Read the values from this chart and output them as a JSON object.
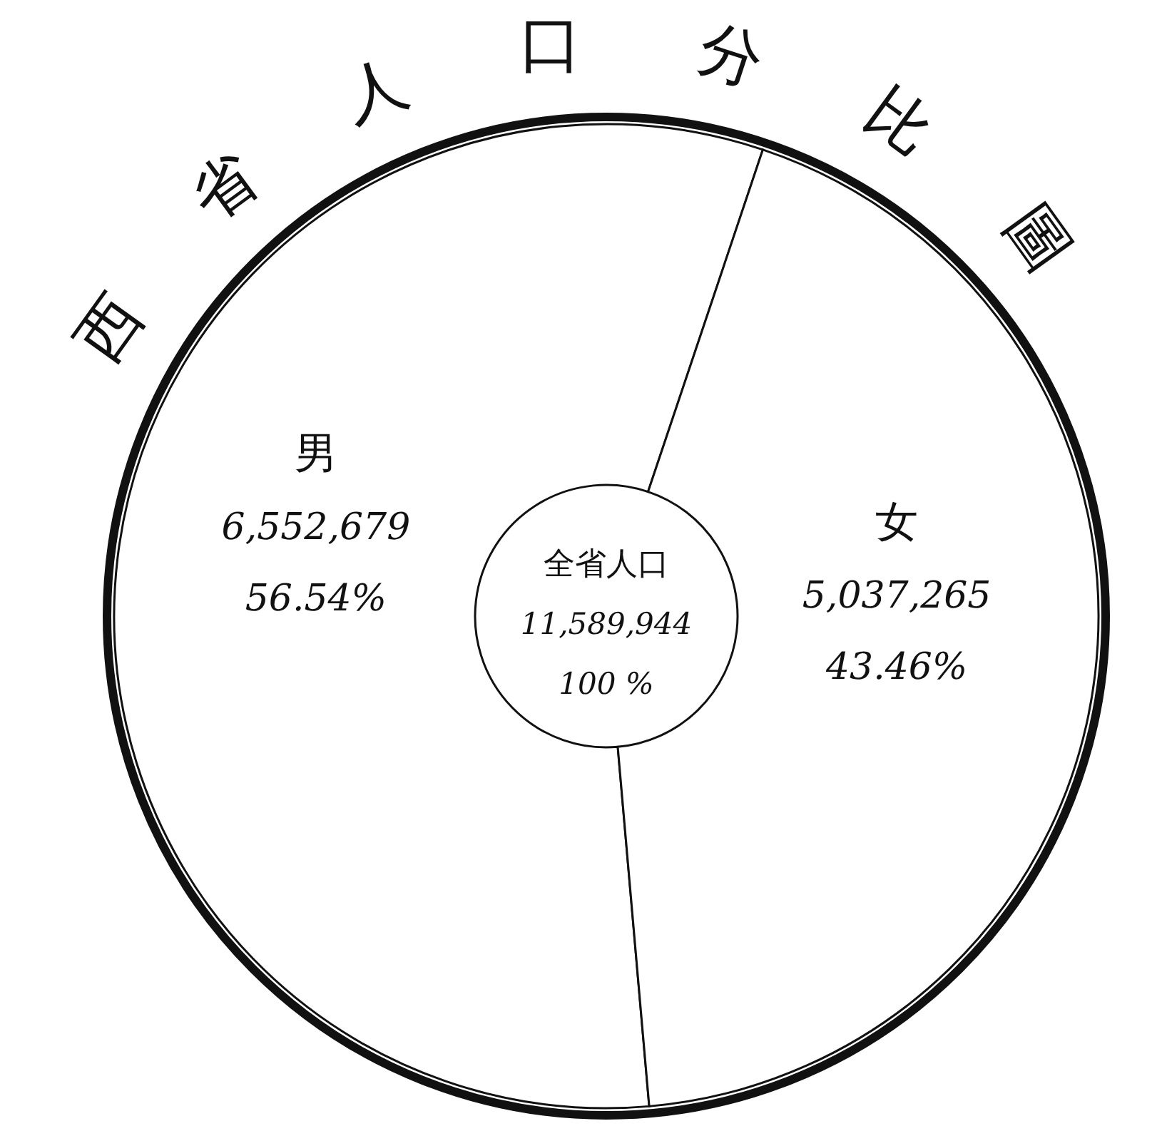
{
  "chart_data": {
    "type": "donut",
    "title": "西省人口分比圖",
    "categories": [
      "男",
      "女"
    ],
    "values": [
      56.54,
      43.46
    ],
    "colors": [
      "#ffffff",
      "#ffffff"
    ],
    "value_labels": [
      "56.54%",
      "43.46%"
    ],
    "annotations": [
      "全省人口",
      "11,589,944",
      "100 %",
      {
        "text": "6,552,679",
        "x": "男"
      },
      {
        "text": "5,037,265",
        "x": "女"
      }
    ]
  }
}
